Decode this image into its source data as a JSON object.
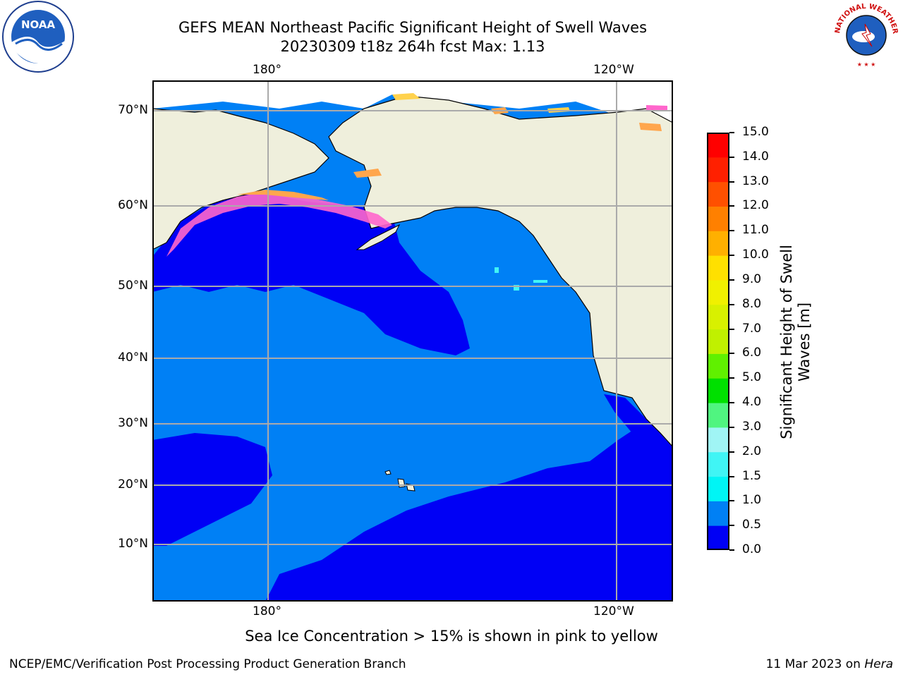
{
  "header": {
    "title_line1": "GEFS MEAN Northeast Pacific Significant Height of Swell Waves",
    "title_line2": "20230309 t18z 264h fcst   Max: 1.13"
  },
  "map": {
    "top_lon_labels": [
      "180°",
      "120°W"
    ],
    "bottom_lon_labels": [
      "180°",
      "120°W"
    ],
    "lat_labels": [
      "70°N",
      "60°N",
      "50°N",
      "40°N",
      "30°N",
      "20°N",
      "10°N"
    ],
    "colors": {
      "land": "#efefdc",
      "ocean_0_0_5": "#0000f5",
      "ocean_0_5_1_0": "#0080f5",
      "grid": "#aaaaaa",
      "ice_pink": "#ff66cc",
      "ice_orange": "#ffa64d",
      "ice_yellow": "#ffd24d"
    }
  },
  "colorbar": {
    "title_line1": "Significant Height of Swell",
    "title_line2": "Waves [m]",
    "tick_labels": [
      "0.0",
      "0.5",
      "1.0",
      "1.5",
      "2.0",
      "3.0",
      "4.0",
      "5.0",
      "6.0",
      "7.0",
      "8.0",
      "9.0",
      "10.0",
      "11.0",
      "12.0",
      "13.0",
      "14.0",
      "15.0"
    ],
    "band_colors": [
      "#0000f5",
      "#0080f5",
      "#00f5f5",
      "#40f5f5",
      "#a0f5f5",
      "#50f580",
      "#00e000",
      "#60f000",
      "#c0f000",
      "#d8f000",
      "#f0f000",
      "#ffe000",
      "#ffb000",
      "#ff8000",
      "#ff5000",
      "#ff2000",
      "#ff0000"
    ]
  },
  "footer": {
    "note": "Sea Ice Concentration > 15% is shown in pink to yellow",
    "credit_left": "NCEP/EMC/Verification Post Processing Product Generation Branch",
    "credit_right_date": "11 Mar 2023 on ",
    "credit_right_host": "Hera"
  },
  "logos": {
    "noaa_text": "NOAA",
    "nws_text": "NATIONAL WEATHER SERVICE"
  }
}
